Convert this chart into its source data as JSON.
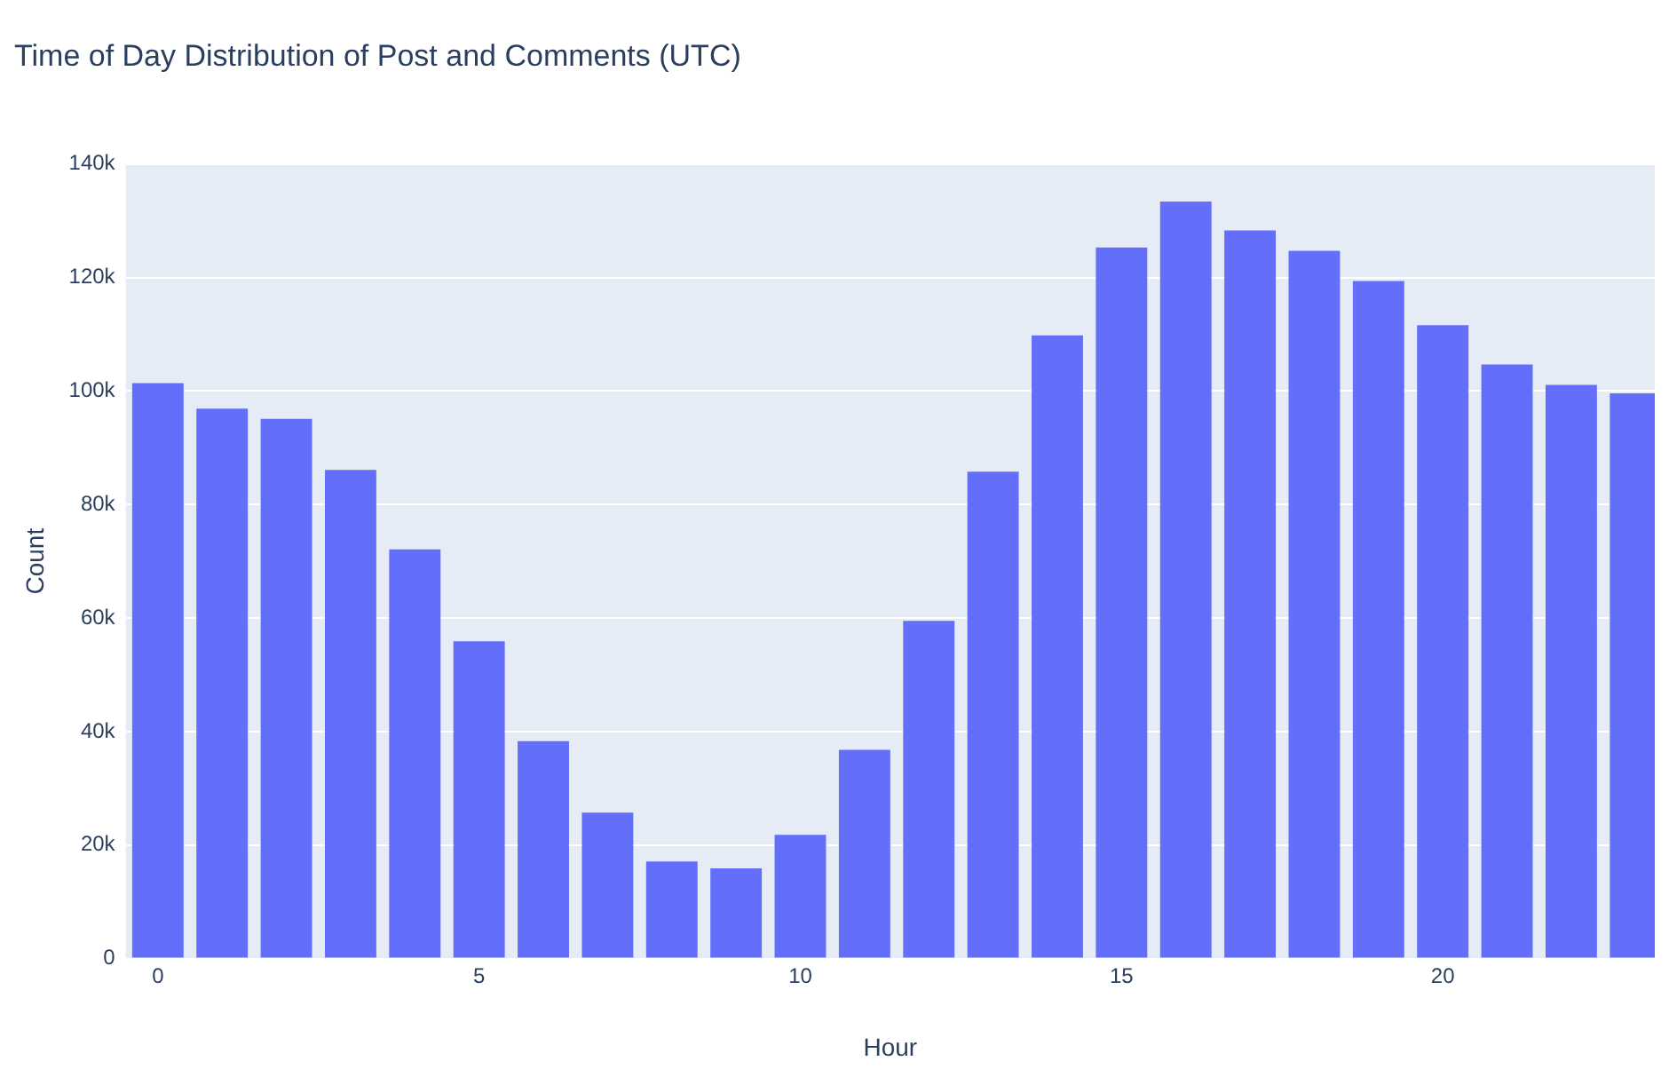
{
  "chart_data": {
    "type": "bar",
    "title": "Time of Day Distribution of Post and Comments (UTC)",
    "xlabel": "Hour",
    "ylabel": "Count",
    "x": [
      0,
      1,
      2,
      3,
      4,
      5,
      6,
      7,
      8,
      9,
      10,
      11,
      12,
      13,
      14,
      15,
      16,
      17,
      18,
      19,
      20,
      21,
      22,
      23
    ],
    "values": [
      101400,
      96900,
      95100,
      86100,
      72100,
      55900,
      38300,
      25700,
      17100,
      15900,
      21800,
      36800,
      59500,
      85800,
      109800,
      125300,
      133400,
      128300,
      124700,
      119400,
      111600,
      104700,
      101100,
      99600
    ],
    "color": "#636efa",
    "xlim": [
      -0.5,
      23.3
    ],
    "xticks": [
      0,
      5,
      10,
      15,
      20
    ],
    "ylim": [
      0,
      140000
    ],
    "yticks": [
      0,
      {
        "value": 20000,
        "label": "20k"
      },
      {
        "value": 40000,
        "label": "40k"
      },
      {
        "value": 60000,
        "label": "60k"
      },
      {
        "value": 80000,
        "label": "80k"
      },
      {
        "value": 100000,
        "label": "100k"
      },
      {
        "value": 120000,
        "label": "120k"
      },
      {
        "value": 140000,
        "label": "140k"
      }
    ],
    "grid": "y"
  }
}
